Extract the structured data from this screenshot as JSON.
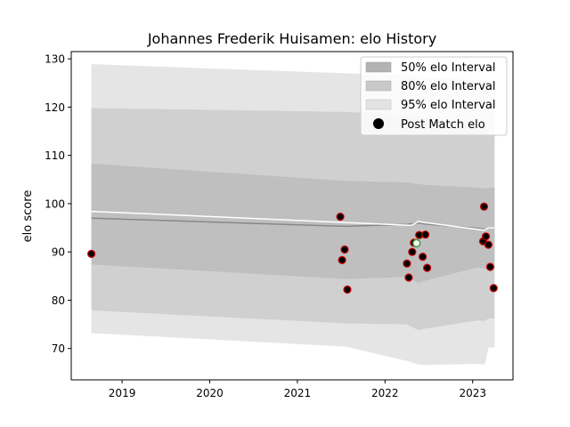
{
  "chart_data": {
    "type": "area",
    "title": "Johannes Frederik Huisamen: elo History",
    "xlabel": "",
    "ylabel": "elo score",
    "xlim": [
      2018.42,
      2023.46
    ],
    "ylim": [
      63.5,
      131.5
    ],
    "x_ticks": [
      2019,
      2020,
      2021,
      2022,
      2023
    ],
    "y_ticks": [
      70,
      80,
      90,
      100,
      110,
      120,
      130
    ],
    "x_tick_labels": [
      "2019",
      "2020",
      "2021",
      "2022",
      "2023"
    ],
    "y_tick_labels": [
      "70",
      "80",
      "90",
      "100",
      "110",
      "120",
      "130"
    ],
    "grid": false,
    "legend_position": "top-right",
    "legend": {
      "band50": "50% elo Interval",
      "band80": "80% elo Interval",
      "band95": "95% elo Interval",
      "points": "Post Match elo"
    },
    "bands": {
      "x": [
        2018.65,
        2021.55,
        2022.25,
        2022.38,
        2022.45,
        2023.05,
        2023.14,
        2023.18,
        2023.25
      ],
      "mean": [
        97.0,
        95.3,
        95.7,
        96.0,
        95.8,
        94.9,
        94.7,
        95.0,
        95.0
      ],
      "band50_upper": [
        108.3,
        104.7,
        104.4,
        104.1,
        103.9,
        103.3,
        103.1,
        103.3,
        103.3
      ],
      "band50_lower": [
        87.4,
        84.4,
        84.8,
        83.6,
        84.0,
        86.8,
        86.5,
        87.0,
        87.0
      ],
      "band80_upper": [
        119.8,
        119.0,
        118.4,
        118.0,
        117.8,
        116.5,
        116.2,
        114.5,
        114.5
      ],
      "band80_lower": [
        77.9,
        75.2,
        75.0,
        73.8,
        74.1,
        75.8,
        75.7,
        76.2,
        76.2
      ],
      "band95_upper": [
        128.9,
        127.0,
        126.6,
        126.3,
        126.2,
        125.6,
        125.3,
        124.5,
        124.5
      ],
      "band95_lower": [
        73.2,
        70.4,
        67.4,
        66.7,
        66.6,
        66.8,
        66.7,
        70.2,
        70.2
      ],
      "colors": {
        "band50": "#bfbfbf",
        "band80": "#d0d0d0",
        "band95": "#e5e5e5",
        "mean": "#888888"
      }
    },
    "trend_line": {
      "x": [
        2018.65,
        2022.3,
        2022.38,
        2022.45,
        2023.13,
        2023.18,
        2023.25
      ],
      "y": [
        98.4,
        95.5,
        96.3,
        96.1,
        94.5,
        95.0,
        95.0
      ],
      "color": "#ffffff"
    },
    "points": {
      "x": [
        2018.65,
        2021.49,
        2021.51,
        2021.54,
        2021.57,
        2022.25,
        2022.27,
        2022.31,
        2022.33,
        2022.39,
        2022.43,
        2022.46,
        2022.48,
        2023.12,
        2023.13,
        2023.15,
        2023.18,
        2023.2,
        2023.24
      ],
      "y": [
        89.6,
        97.3,
        88.3,
        90.5,
        82.2,
        87.6,
        84.7,
        90.0,
        91.9,
        93.5,
        89.0,
        93.6,
        86.7,
        92.2,
        99.4,
        93.2,
        91.5,
        86.9,
        82.5
      ],
      "color": "#000000",
      "edge_color": "#cc0000"
    },
    "highlight_point": {
      "x": 2022.36,
      "y": 91.8,
      "color": "#ffffff",
      "edge_color": "#3a9a3a"
    }
  }
}
